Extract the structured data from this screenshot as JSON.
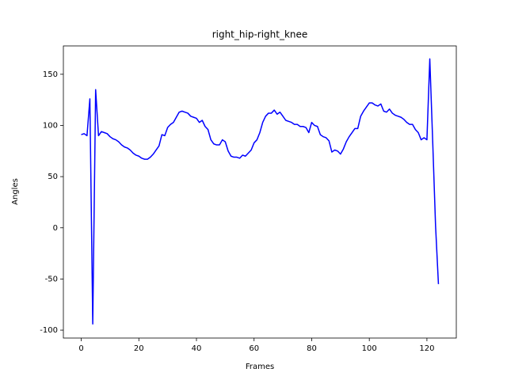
{
  "chart_data": {
    "type": "line",
    "title": "right_hip-right_knee",
    "x_label": "Frames",
    "y_label": "Angles",
    "x": [
      0,
      1,
      2,
      3,
      4,
      5,
      6,
      7,
      8,
      9,
      10,
      11,
      12,
      13,
      14,
      15,
      16,
      17,
      18,
      19,
      20,
      21,
      22,
      23,
      24,
      25,
      26,
      27,
      28,
      29,
      30,
      31,
      32,
      33,
      34,
      35,
      36,
      37,
      38,
      39,
      40,
      41,
      42,
      43,
      44,
      45,
      46,
      47,
      48,
      49,
      50,
      51,
      52,
      53,
      54,
      55,
      56,
      57,
      58,
      59,
      60,
      61,
      62,
      63,
      64,
      65,
      66,
      67,
      68,
      69,
      70,
      71,
      72,
      73,
      74,
      75,
      76,
      77,
      78,
      79,
      80,
      81,
      82,
      83,
      84,
      85,
      86,
      87,
      88,
      89,
      90,
      91,
      92,
      93,
      94,
      95,
      96,
      97,
      98,
      99,
      100,
      101,
      102,
      103,
      104,
      105,
      106,
      107,
      108,
      109,
      110,
      111,
      112,
      113,
      114,
      115,
      116,
      117,
      118,
      119,
      120,
      121,
      122,
      123,
      124
    ],
    "series": [
      {
        "color": "#0000ff",
        "values": [
          91,
          92,
          90,
          126,
          -94,
          135,
          90,
          94,
          93,
          92,
          89,
          87,
          86,
          84,
          81,
          79,
          78,
          76,
          73,
          71,
          70,
          68,
          67,
          67,
          69,
          72,
          76,
          80,
          91,
          90,
          98,
          101,
          103,
          108,
          113,
          114,
          113,
          112,
          109,
          108,
          107,
          103,
          105,
          99,
          96,
          86,
          82,
          81,
          81,
          86,
          84,
          75,
          70,
          69,
          69,
          68,
          71,
          70,
          73,
          76,
          83,
          86,
          93,
          103,
          109,
          112,
          112,
          115,
          111,
          113,
          109,
          105,
          104,
          103,
          101,
          101,
          99,
          99,
          98,
          93,
          103,
          100,
          99,
          91,
          89,
          88,
          85,
          74,
          76,
          75,
          72,
          77,
          84,
          89,
          93,
          97,
          97,
          109,
          114,
          118,
          122,
          122,
          120,
          119,
          121,
          114,
          113,
          116,
          112,
          110,
          109,
          108,
          106,
          103,
          101,
          101,
          96,
          93,
          86,
          88,
          86,
          165,
          85,
          2,
          -55
        ]
      }
    ],
    "xlim": [
      -6.2,
      130.2
    ],
    "ylim": [
      -107.7,
      177.7
    ],
    "xticks": [
      0,
      20,
      40,
      60,
      80,
      100,
      120
    ],
    "yticks": [
      -100,
      -50,
      0,
      50,
      100,
      150
    ]
  }
}
